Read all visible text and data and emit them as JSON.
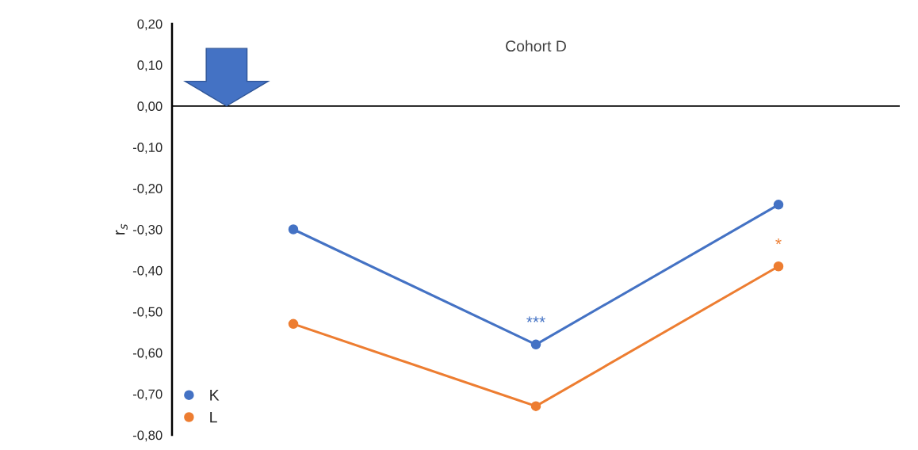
{
  "chart_data": {
    "type": "line",
    "title": "Cohort D",
    "ylabel": "r$_{s}$",
    "categories": [
      null,
      null,
      null
    ],
    "ylim": [
      -0.8,
      0.2
    ],
    "yticks": [
      {
        "value": 0.2,
        "label": "0,20"
      },
      {
        "value": 0.1,
        "label": "0,10"
      },
      {
        "value": 0,
        "label": "0,00"
      },
      {
        "value": -0.1,
        "label": "-0,10"
      },
      {
        "value": -0.2,
        "label": "-0,20"
      },
      {
        "value": -0.3,
        "label": "-0,30"
      },
      {
        "value": -0.4,
        "label": "-0,40"
      },
      {
        "value": -0.5,
        "label": "-0,50"
      },
      {
        "value": -0.6,
        "label": "-0,60"
      },
      {
        "value": -0.7,
        "label": "-0,70"
      },
      {
        "value": -0.8,
        "label": "-0,80"
      }
    ],
    "ref_lines": [
      {
        "axis": "y",
        "value": 0,
        "color": "#000000",
        "line_style": "solid"
      }
    ],
    "tick_labels": "y",
    "grid": false,
    "legend": "bottom left",
    "marker": "circle",
    "line_style": "solid",
    "series": [
      {
        "name": "K",
        "color": "#4472c4",
        "values": [
          -0.3,
          -0.58,
          -0.24
        ]
      },
      {
        "name": "L",
        "color": "#ed7d31",
        "values": [
          -0.53,
          -0.73,
          -0.39
        ]
      }
    ],
    "annotations": [
      {
        "text": "***",
        "y": -0.58
      },
      {
        "text": "*",
        "y": -0.39
      }
    ]
  }
}
